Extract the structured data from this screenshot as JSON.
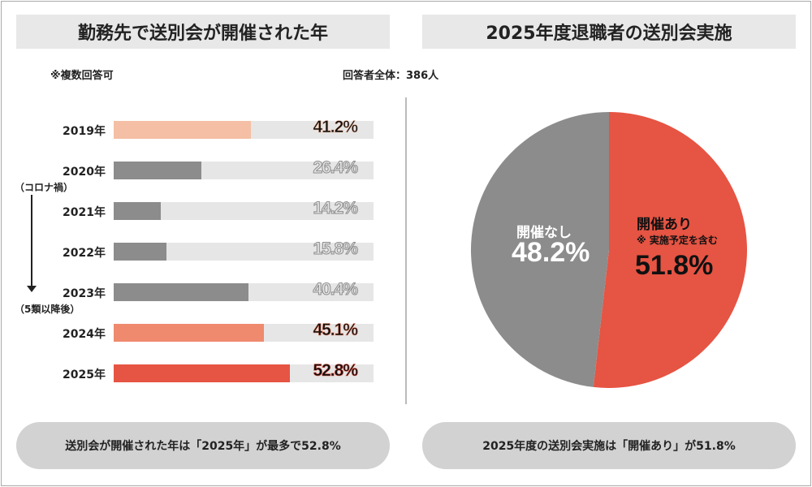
{
  "left": {
    "title": "勤務先で送別会が開催された年",
    "note": "※複数回答可",
    "side_top": "（コロナ禍）",
    "side_bottom": "（5類以降後）",
    "summary": "送別会が開催された年は「2025年」が最多で52.8%"
  },
  "right": {
    "title": "2025年度退職者の送別会実施",
    "respondents": "回答者全体：386人",
    "summary": "2025年度の送別会実施は「開催あり」が51.8%"
  },
  "chart_data": [
    {
      "type": "bar",
      "orientation": "horizontal",
      "categories": [
        "2019年",
        "2020年",
        "2021年",
        "2022年",
        "2023年",
        "2024年",
        "2025年"
      ],
      "values": [
        41.2,
        26.4,
        14.2,
        15.8,
        40.4,
        45.1,
        52.8
      ],
      "labels": [
        "41.2%",
        "26.4%",
        "14.2%",
        "15.8%",
        "40.4%",
        "45.1%",
        "52.8%"
      ],
      "colors": [
        "#f4bfa4",
        "#8c8c8c",
        "#8c8c8c",
        "#8c8c8c",
        "#8c8c8c",
        "#ef8a6e",
        "#e65443"
      ],
      "track_color": "#e6e6e6"
    },
    {
      "type": "pie",
      "slices": [
        {
          "label": "開催あり",
          "sublabel": "※ 実施予定を含む",
          "value": 51.8,
          "text": "51.8%",
          "color": "#e65443"
        },
        {
          "label": "開催なし",
          "value": 48.2,
          "text": "48.2%",
          "color": "#8c8c8c"
        }
      ]
    }
  ]
}
